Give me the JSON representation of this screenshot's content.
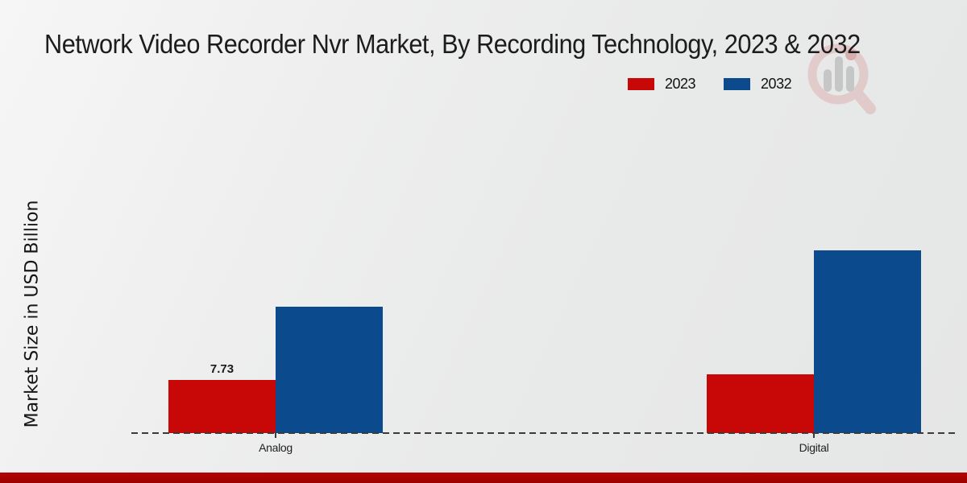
{
  "page": {
    "title": "Network Video Recorder Nvr Market, By Recording Technology, 2023 & 2032"
  },
  "legend": {
    "items": [
      {
        "label": "2023",
        "color": "#c80707"
      },
      {
        "label": "2032",
        "color": "#0b4b8d"
      }
    ]
  },
  "axes": {
    "ylabel": "Market Size in USD Billion"
  },
  "watermark": {
    "icon": "magnifier-bar-chart-logo",
    "ring_color": "#d99a9a",
    "bar_color": "#909090",
    "accent_color": "#c05050"
  },
  "footer": {
    "strip_color": "#b50404"
  },
  "chart_data": {
    "type": "bar",
    "title": "Network Video Recorder Nvr Market, By Recording Technology, 2023 & 2032",
    "categories": [
      "Analog",
      "Digital"
    ],
    "series": [
      {
        "name": "2023",
        "color": "#c80707",
        "values": [
          7.73,
          8.5
        ],
        "bar_labels": [
          "7.73",
          ""
        ]
      },
      {
        "name": "2032",
        "color": "#0b4b8d",
        "values": [
          18.3,
          26.4
        ],
        "bar_labels": [
          "",
          ""
        ]
      }
    ],
    "xlabel": "",
    "ylabel": "Market Size in USD Billion",
    "ylim": [
      0,
      28
    ],
    "grid": false,
    "legend_position": "top-right",
    "baseline_style": "dashed",
    "value_label_note": "only Analog 2023 bar is labeled on chart"
  }
}
